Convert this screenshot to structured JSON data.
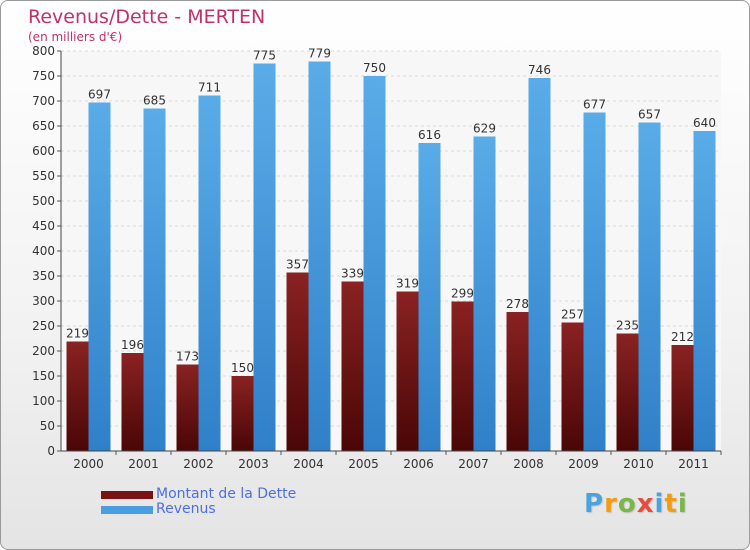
{
  "chart_data": {
    "type": "bar",
    "title": "Revenus/Dette - MERTEN",
    "subtitle": "(en milliers d'€)",
    "categories": [
      "2000",
      "2001",
      "2002",
      "2003",
      "2004",
      "2005",
      "2006",
      "2007",
      "2008",
      "2009",
      "2010",
      "2011"
    ],
    "series": [
      {
        "name": "Montant de la Dette",
        "color": "#7a1414",
        "values": [
          219,
          196,
          173,
          150,
          357,
          339,
          319,
          299,
          278,
          257,
          235,
          212
        ]
      },
      {
        "name": "Revenus",
        "color": "#4a9ee0",
        "values": [
          697,
          685,
          711,
          775,
          779,
          750,
          616,
          629,
          746,
          677,
          657,
          640
        ]
      }
    ],
    "ylim": [
      0,
      800
    ],
    "yticks": [
      0,
      50,
      100,
      150,
      200,
      250,
      300,
      350,
      400,
      450,
      500,
      550,
      600,
      650,
      700,
      750,
      800
    ],
    "grid": true,
    "legend_position": "bottom-left"
  },
  "brand": {
    "logo_letters": [
      "P",
      "r",
      "o",
      "x",
      "i",
      "t",
      "i"
    ],
    "logo_colors": [
      "#4aa3df",
      "#f39c12",
      "#7ab648",
      "#e74c3c",
      "#4aa3df",
      "#f39c12",
      "#7ab648"
    ]
  }
}
